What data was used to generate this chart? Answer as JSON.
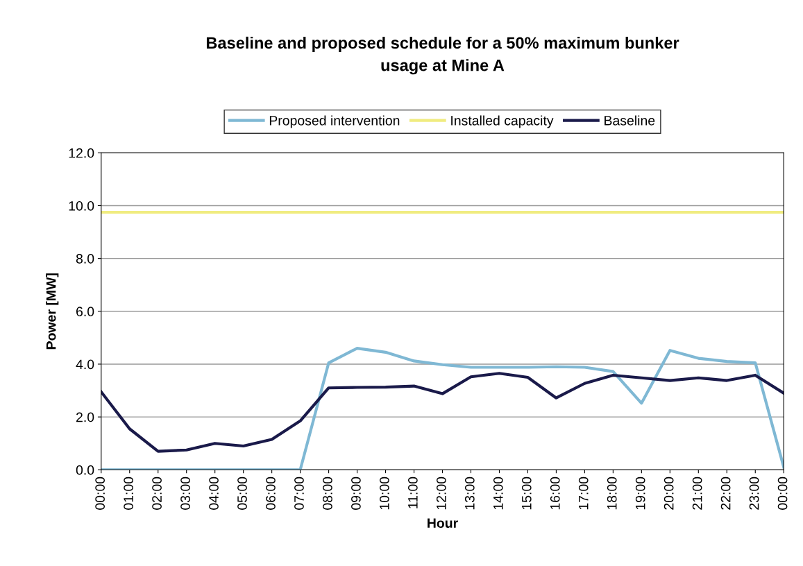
{
  "chart_data": {
    "type": "line",
    "title": "Baseline and proposed schedule for a 50% maximum bunker\nusage at Mine A",
    "xlabel": "Hour",
    "ylabel": "Power [MW]",
    "categories": [
      "00:00",
      "01:00",
      "02:00",
      "03:00",
      "04:00",
      "05:00",
      "06:00",
      "07:00",
      "08:00",
      "09:00",
      "10:00",
      "11:00",
      "12:00",
      "13:00",
      "14:00",
      "15:00",
      "16:00",
      "17:00",
      "18:00",
      "19:00",
      "20:00",
      "21:00",
      "22:00",
      "23:00",
      "00:00"
    ],
    "series": [
      {
        "name": "Proposed intervention",
        "color": "#7fb8d4",
        "values": [
          0,
          0,
          0,
          0,
          0,
          0,
          0,
          0,
          4.05,
          4.6,
          4.45,
          4.12,
          3.98,
          3.88,
          3.88,
          3.88,
          3.9,
          3.88,
          3.72,
          2.52,
          4.52,
          4.22,
          4.1,
          4.05,
          0.1
        ]
      },
      {
        "name": "Installed capacity",
        "color": "#f0ec80",
        "values": [
          9.75,
          9.75,
          9.75,
          9.75,
          9.75,
          9.75,
          9.75,
          9.75,
          9.75,
          9.75,
          9.75,
          9.75,
          9.75,
          9.75,
          9.75,
          9.75,
          9.75,
          9.75,
          9.75,
          9.75,
          9.75,
          9.75,
          9.75,
          9.75,
          9.75
        ]
      },
      {
        "name": "Baseline",
        "color": "#1a1a4a",
        "values": [
          2.95,
          1.55,
          0.7,
          0.75,
          1.0,
          0.9,
          1.15,
          1.85,
          3.1,
          3.12,
          3.13,
          3.17,
          2.88,
          3.52,
          3.65,
          3.5,
          2.72,
          3.27,
          3.58,
          3.48,
          3.38,
          3.48,
          3.38,
          3.58,
          2.9
        ]
      }
    ],
    "ylim": [
      0,
      12
    ],
    "yticks": [
      {
        "value": 0,
        "label": "0.0"
      },
      {
        "value": 2,
        "label": "2.0"
      },
      {
        "value": 4,
        "label": "4.0"
      },
      {
        "value": 6,
        "label": "6.0"
      },
      {
        "value": 8,
        "label": "8.0"
      },
      {
        "value": 10,
        "label": "10.0"
      },
      {
        "value": 12,
        "label": "12.0"
      }
    ],
    "grid": "y",
    "legend": "top",
    "marker": "none",
    "line_style": "solid"
  }
}
